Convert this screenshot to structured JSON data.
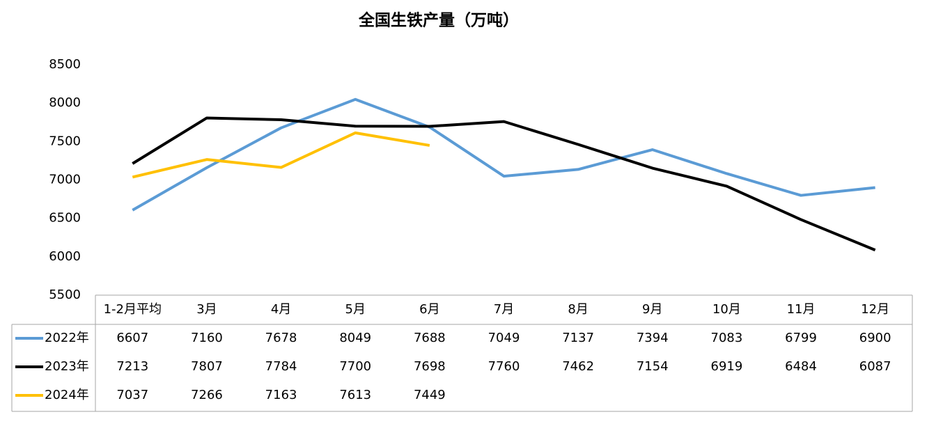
{
  "chart_data": {
    "type": "line",
    "title": "全国生铁产量（万吨）",
    "categories": [
      "1-2月平均",
      "3月",
      "4月",
      "5月",
      "6月",
      "7月",
      "8月",
      "9月",
      "10月",
      "11月",
      "12月"
    ],
    "series": [
      {
        "name": "2022年",
        "color": "#5b9bd5",
        "values": [
          6607,
          7160,
          7678,
          8049,
          7688,
          7049,
          7137,
          7394,
          7083,
          6799,
          6900
        ]
      },
      {
        "name": "2023年",
        "color": "#000000",
        "values": [
          7213,
          7807,
          7784,
          7700,
          7698,
          7760,
          7462,
          7154,
          6919,
          6484,
          6087
        ]
      },
      {
        "name": "2024年",
        "color": "#ffc000",
        "values": [
          7037,
          7266,
          7163,
          7613,
          7449,
          null,
          null,
          null,
          null,
          null,
          null
        ]
      }
    ],
    "ylim": [
      5500,
      8500
    ],
    "yticks": [
      5500,
      6000,
      6500,
      7000,
      7500,
      8000,
      8500
    ],
    "grid": false
  }
}
